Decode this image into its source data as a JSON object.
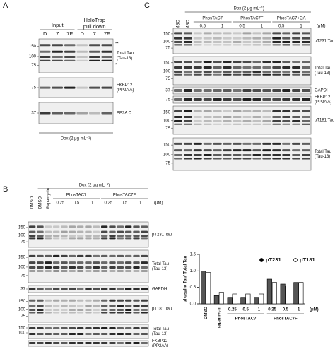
{
  "panel_a": {
    "label": "A",
    "input": "Input",
    "pulldown": [
      "HaloTrap",
      "pull down"
    ],
    "lanes": [
      "D",
      "7",
      "7F",
      "D",
      "7",
      "7F"
    ],
    "band_marks": [
      "**",
      "*"
    ],
    "blots": [
      {
        "mw": [
          150,
          100,
          75
        ],
        "label": [
          "Total Tau",
          "(Tau-13)"
        ]
      },
      {
        "mw": [
          75
        ],
        "label": [
          "FKBP12",
          "(PP2A A)"
        ]
      },
      {
        "mw": [
          37
        ],
        "label": [
          "PP2A C"
        ]
      }
    ],
    "treatment": "Dox (2 μg mL⁻¹)"
  },
  "panel_c": {
    "label": "C",
    "treatment": "Dox (2 μg mL⁻¹)",
    "unit": "(μM)",
    "controls": [
      "DMSO",
      "DMSO"
    ],
    "groups": [
      {
        "name": "PhosTAC7",
        "doses": [
          0.5,
          1
        ]
      },
      {
        "name": "PhosTAC7F",
        "doses": [
          0.5,
          1
        ]
      },
      {
        "name": "PhosTAC7+OA",
        "doses": [
          0.5,
          1
        ]
      }
    ],
    "blots": [
      {
        "mw": [
          150,
          100,
          75
        ],
        "label": [
          "pT231 Tau"
        ]
      },
      {
        "mw": [
          150,
          100,
          75
        ],
        "label": [
          "Total Tau",
          "(Tau-13)"
        ]
      },
      {
        "mw": [
          37
        ],
        "label": [
          "GAPDH"
        ]
      },
      {
        "mw": [
          75
        ],
        "label": [
          "FKBP12",
          "(PP2A A)"
        ]
      },
      {
        "mw": [
          150,
          100,
          75
        ],
        "label": [
          "pT181 Tau"
        ]
      },
      {
        "mw": [
          150,
          100,
          75
        ],
        "label": [
          "Total Tau",
          "(Tau-13)"
        ]
      }
    ]
  },
  "panel_b": {
    "label": "B",
    "treatment": "Dox (2 μg mL⁻¹)",
    "unit": "(μM)",
    "controls": [
      "DMSO",
      "DMSO",
      "Rapamycin"
    ],
    "groups": [
      {
        "name": "PhosTAC7",
        "doses": [
          0.25,
          0.5,
          1
        ]
      },
      {
        "name": "PhosTAC7F",
        "doses": [
          0.25,
          0.5,
          1
        ]
      }
    ],
    "blots": [
      {
        "mw": [
          150,
          100,
          75
        ],
        "label": [
          "pT231 Tau"
        ]
      },
      {
        "mw": [
          150,
          100,
          75
        ],
        "label": [
          "Total Tau",
          "(Tau-13)"
        ]
      },
      {
        "mw": [
          37
        ],
        "label": [
          "GAPDH"
        ]
      },
      {
        "mw": [
          150,
          100,
          75
        ],
        "label": [
          "pT181 Tau"
        ]
      },
      {
        "mw": [
          150,
          100
        ],
        "label": [
          "Total Tau",
          "(Tau-13)"
        ]
      },
      {
        "mw": [],
        "label": [
          "FKBP12",
          "(PP2AA)"
        ]
      }
    ]
  },
  "chart_data": {
    "type": "bar",
    "ylabel": "phospho Tau/ Total Tau",
    "categories": [
      "DMSO",
      "rapamycin",
      "0.25",
      "0.5",
      "1",
      "0.25",
      "0.5",
      "1"
    ],
    "category_groups": [
      "PhosTAC7",
      "PhosTAC7F"
    ],
    "unit": "(μM)",
    "series": [
      {
        "name": "pT231",
        "color": "#555555",
        "values": [
          1.0,
          0.25,
          0.2,
          0.2,
          0.2,
          0.75,
          0.6,
          0.65
        ]
      },
      {
        "name": "pT181",
        "color": "#ffffff",
        "values": [
          0.95,
          0.35,
          0.3,
          0.3,
          0.3,
          0.65,
          0.55,
          0.65
        ]
      }
    ],
    "ylim": [
      0,
      1.5
    ],
    "yticks": [
      {
        "value": 0,
        "label": "0.0"
      },
      {
        "value": 0.5,
        "label": "0.5"
      },
      {
        "value": 1,
        "label": "1.0"
      },
      {
        "value": 1.5,
        "label": "1.5"
      }
    ],
    "legend": "top-right"
  }
}
